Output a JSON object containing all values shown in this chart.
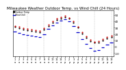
{
  "title": "Milwaukee Weather Outdoor Temp. vs Wind Chill (24 Hours)",
  "title_fontsize": 4.0,
  "bg_color": "#ffffff",
  "plot_bg": "#ffffff",
  "grid_color": "#999999",
  "y_min": -15,
  "y_max": 58,
  "y_ticks": [
    -10,
    0,
    10,
    20,
    30,
    40,
    50
  ],
  "temp_color": "#cc0000",
  "wc_color": "#0000cc",
  "out_color": "#000000",
  "temp_data_x": [
    0,
    1,
    2,
    3,
    4,
    5,
    6,
    7,
    8,
    9,
    10,
    11,
    12,
    13,
    14,
    15,
    16,
    17,
    18,
    19,
    20,
    21,
    22,
    23
  ],
  "temp_data_y": [
    33,
    31,
    29,
    28,
    27,
    26,
    25,
    29,
    35,
    40,
    44,
    47,
    49,
    46,
    40,
    32,
    23,
    16,
    11,
    8,
    9,
    12,
    15,
    17
  ],
  "out_data_x": [
    0,
    1,
    2,
    3,
    4,
    5,
    6,
    7,
    8,
    9,
    10,
    11,
    12,
    13,
    14,
    15,
    16,
    17,
    18,
    19,
    20,
    21,
    22,
    23
  ],
  "out_data_y": [
    31,
    29,
    27,
    26,
    25,
    24,
    23,
    27,
    33,
    38,
    42,
    45,
    47,
    44,
    38,
    30,
    21,
    14,
    9,
    6,
    7,
    10,
    13,
    15
  ],
  "wc_data_x": [
    0,
    1,
    2,
    3,
    4,
    5,
    6,
    7,
    8,
    9,
    10,
    11,
    12,
    13,
    14,
    15,
    16,
    17,
    18,
    19,
    20,
    21,
    22,
    23
  ],
  "wc_data_y": [
    24,
    22,
    19,
    18,
    17,
    16,
    15,
    20,
    28,
    34,
    38,
    41,
    43,
    40,
    33,
    23,
    12,
    4,
    -2,
    -6,
    -5,
    -1,
    3,
    6
  ],
  "vgrid_x": [
    3,
    7,
    11,
    15,
    19,
    23
  ],
  "x_labels_top": [
    "1",
    "2",
    "3",
    "4",
    "5",
    "6",
    "7",
    "8",
    "9",
    "10",
    "11",
    "12",
    "1",
    "2",
    "3",
    "4",
    "5",
    "6",
    "7",
    "8",
    "9",
    "10",
    "11",
    "12"
  ],
  "x_labels_bottom": [
    "a",
    "a",
    "a",
    "a",
    "a",
    "a",
    "a",
    "a",
    "a",
    "a",
    "a",
    "a",
    "p",
    "p",
    "p",
    "p",
    "p",
    "p",
    "p",
    "p",
    "p",
    "p",
    "p",
    "p"
  ],
  "legend_entries": [
    "Outdoor Temp",
    "Wind Chill"
  ],
  "marker_size": 1.2,
  "wc_linewidth": 0.9,
  "wc_halfwidth": 0.35
}
